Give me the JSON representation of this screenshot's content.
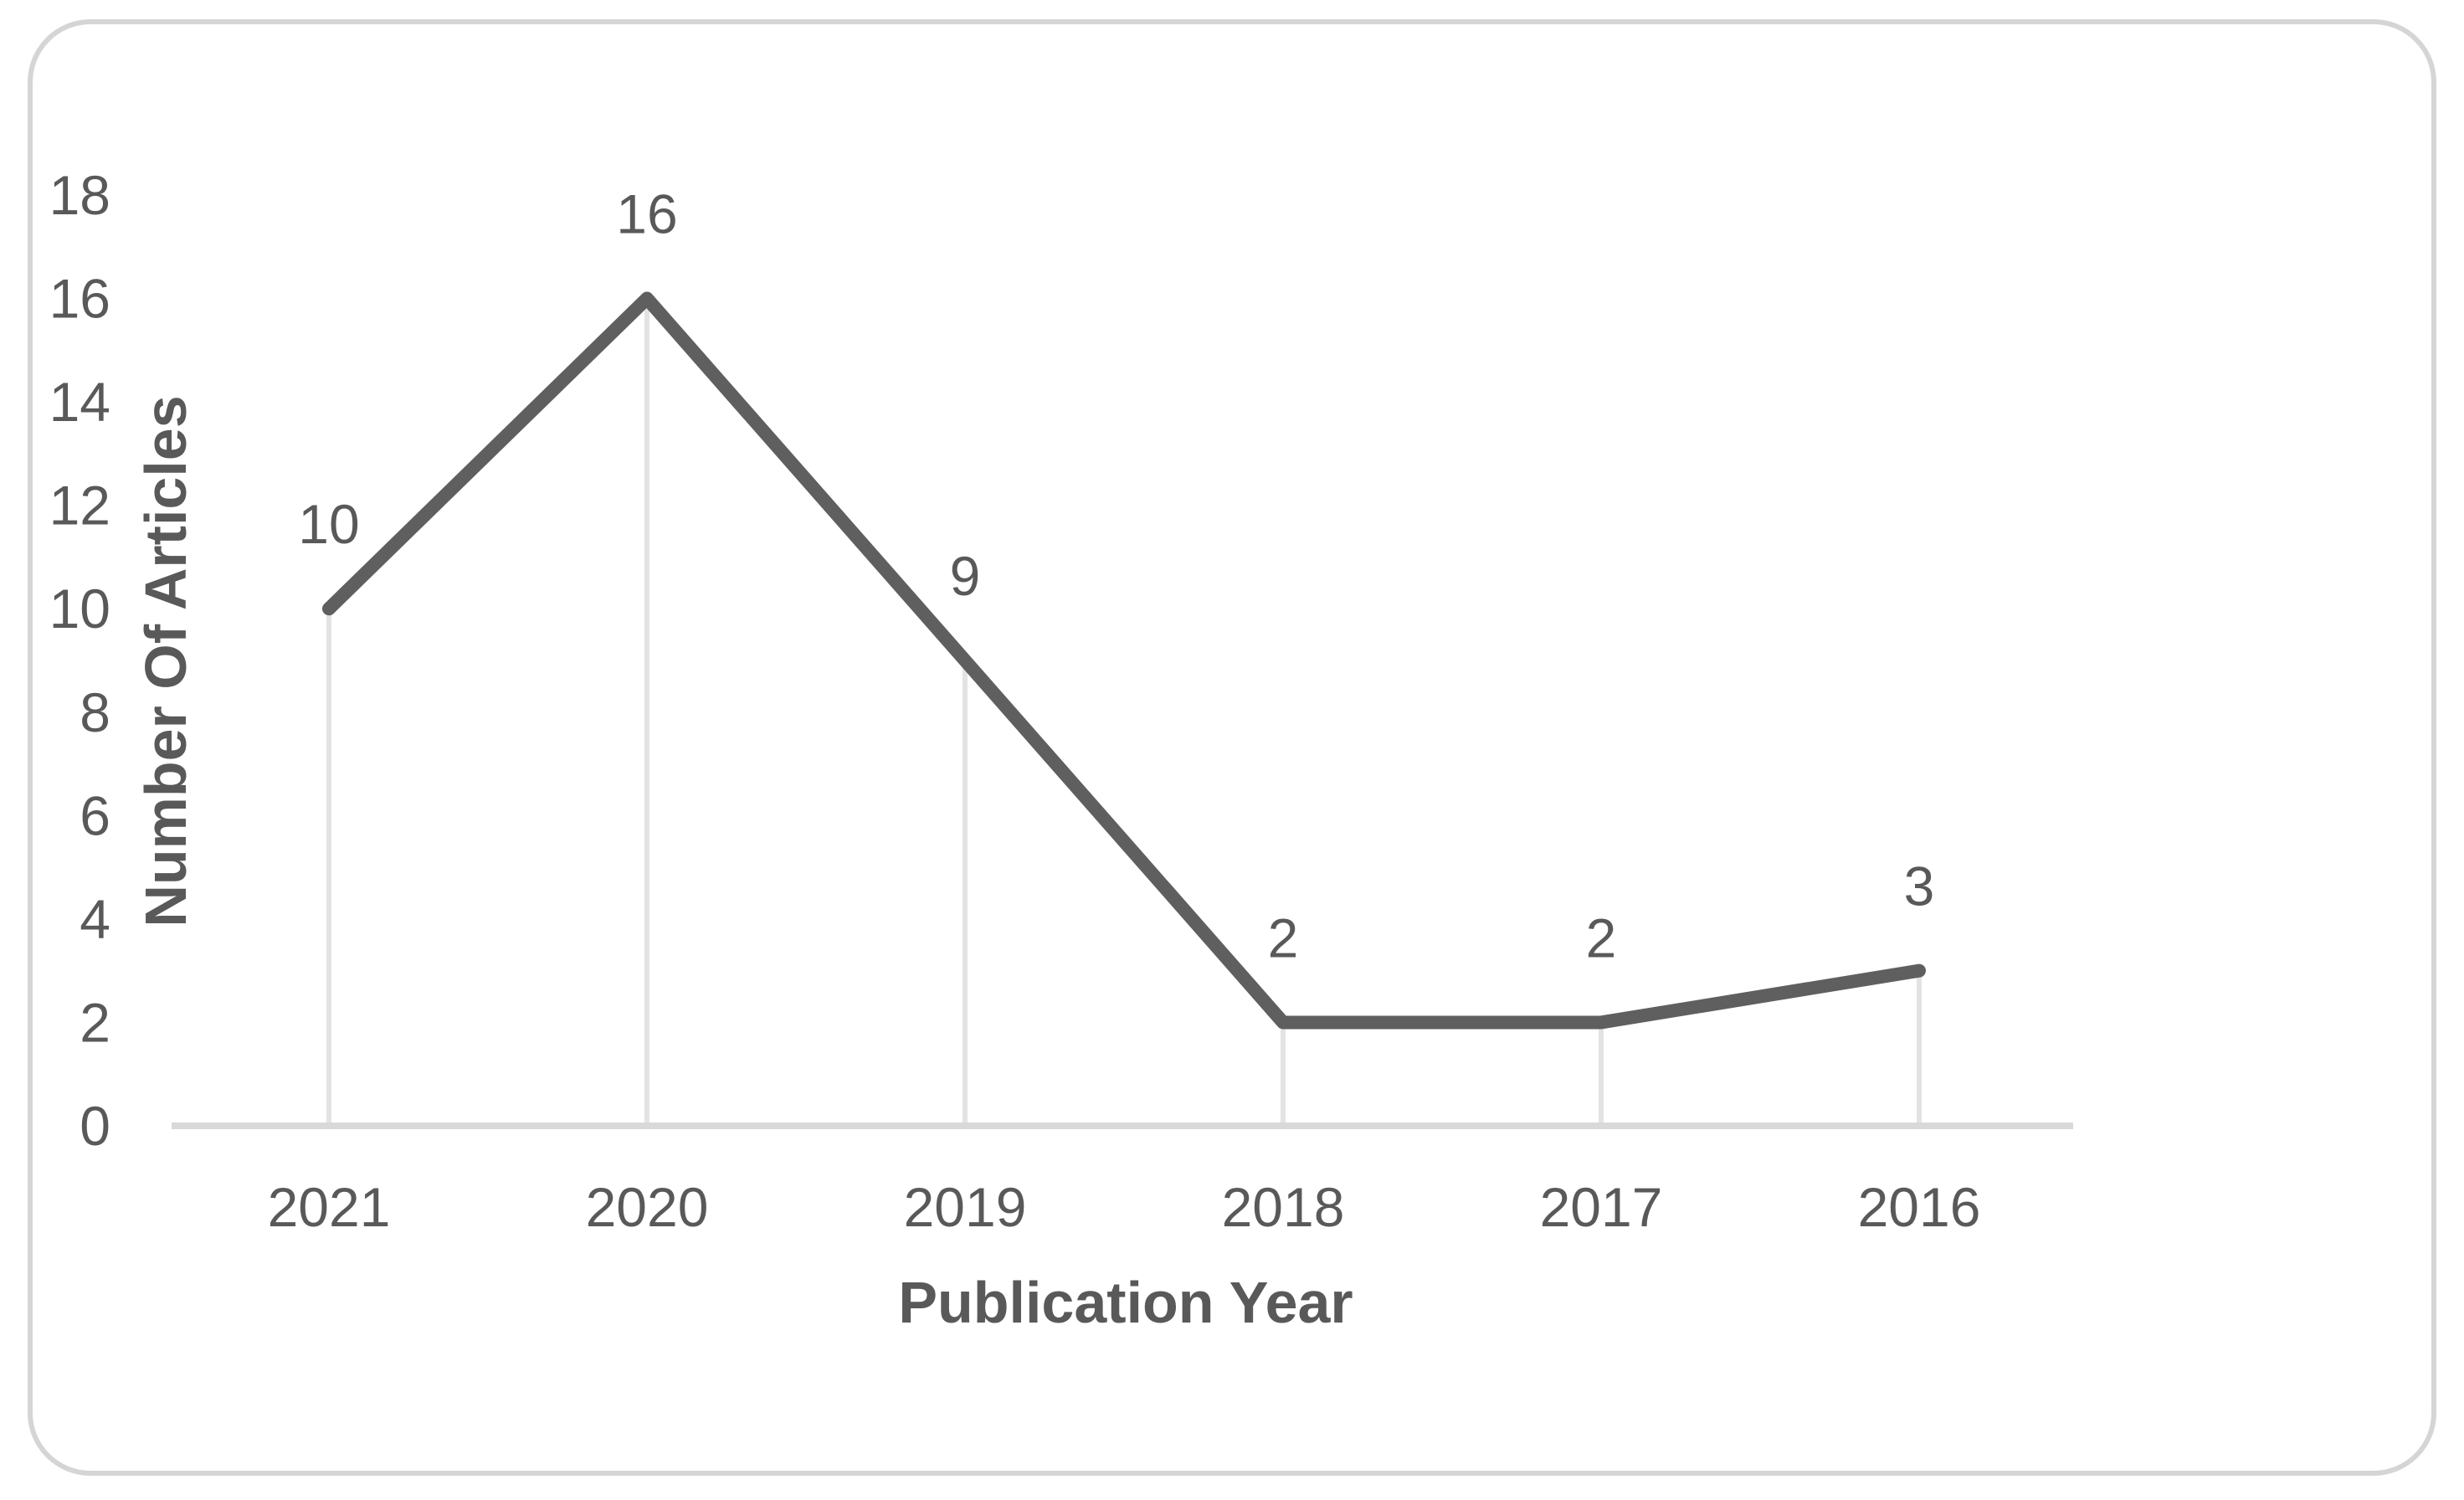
{
  "chart_data": {
    "type": "line",
    "title": "",
    "xlabel": "Publication Year",
    "ylabel": "Number Of Articles",
    "categories": [
      "2021",
      "2020",
      "2019",
      "2018",
      "2017",
      "2016"
    ],
    "values": [
      10,
      16,
      9,
      2,
      2,
      3
    ],
    "data_labels": [
      "10",
      "16",
      "9",
      "2",
      "2",
      "3"
    ],
    "ylim": [
      0,
      18
    ],
    "ytick_step": 2,
    "ytick_labels": [
      "0",
      "2",
      "4",
      "6",
      "8",
      "10",
      "12",
      "14",
      "16",
      "18"
    ],
    "grid": "off",
    "legend": "none",
    "colors": {
      "series_line": "#5f5f5f",
      "drop_line": "#e3e3e3",
      "axis_line": "#d9d9d9",
      "text": "#595959",
      "card_border": "#d5d5d5",
      "background": "#ffffff"
    }
  }
}
